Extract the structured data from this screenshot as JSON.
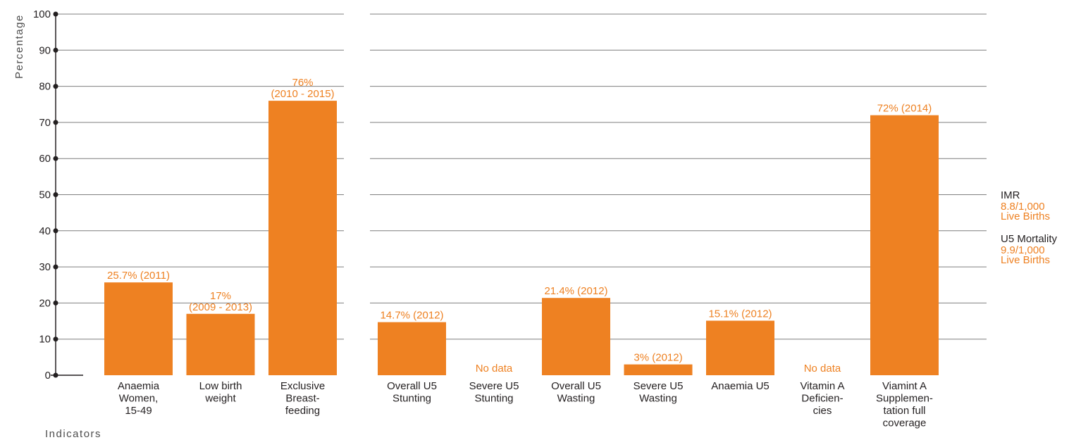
{
  "colors": {
    "bar": "#ee8122",
    "axis": "#231f20",
    "grid": "#7f7f7f",
    "label": "#ee8122",
    "text": "#231f20"
  },
  "chart_data": {
    "type": "bar",
    "title": "",
    "xlabel": "Indicators",
    "ylabel": "Percentage",
    "ylim": [
      0,
      100
    ],
    "yticks": [
      "0",
      "10",
      "20",
      "30",
      "40",
      "50",
      "60",
      "70",
      "80",
      "90",
      "100"
    ],
    "grid": true,
    "groups": [
      {
        "categories": [
          [
            "Anaemia",
            "Women,",
            "15-49"
          ],
          [
            "Low birth",
            "weight"
          ],
          [
            "Exclusive",
            "Breast-",
            "feeding"
          ]
        ],
        "values": [
          25.7,
          17,
          76
        ],
        "labels": [
          [
            "25.7% (2011)"
          ],
          [
            "17%",
            "(2009 - 2013)"
          ],
          [
            "76%",
            "(2010 - 2015)"
          ]
        ]
      },
      {
        "categories": [
          [
            "Overall U5",
            "Stunting"
          ],
          [
            "Severe U5",
            "Stunting"
          ],
          [
            "Overall U5",
            "Wasting"
          ],
          [
            "Severe U5",
            "Wasting"
          ],
          [
            "Anaemia U5"
          ],
          [
            "Vitamin A",
            "Deficien-",
            "cies"
          ],
          [
            "Viamint A",
            "Supplemen-",
            "tation full",
            "coverage"
          ]
        ],
        "values": [
          14.7,
          null,
          21.4,
          3,
          15.1,
          null,
          72
        ],
        "labels": [
          [
            "14.7% (2012)"
          ],
          [
            "No data"
          ],
          [
            "21.4% (2012)"
          ],
          [
            "3% (2012)"
          ],
          [
            "15.1% (2012)"
          ],
          [
            "No data"
          ],
          [
            "72% (2014)"
          ]
        ]
      }
    ]
  },
  "side_stats": [
    {
      "label": "IMR",
      "value_lines": [
        "8.8/1,000",
        "Live Births"
      ]
    },
    {
      "label": "U5 Mortality",
      "value_lines": [
        "9.9/1,000",
        "Live Births"
      ]
    }
  ]
}
